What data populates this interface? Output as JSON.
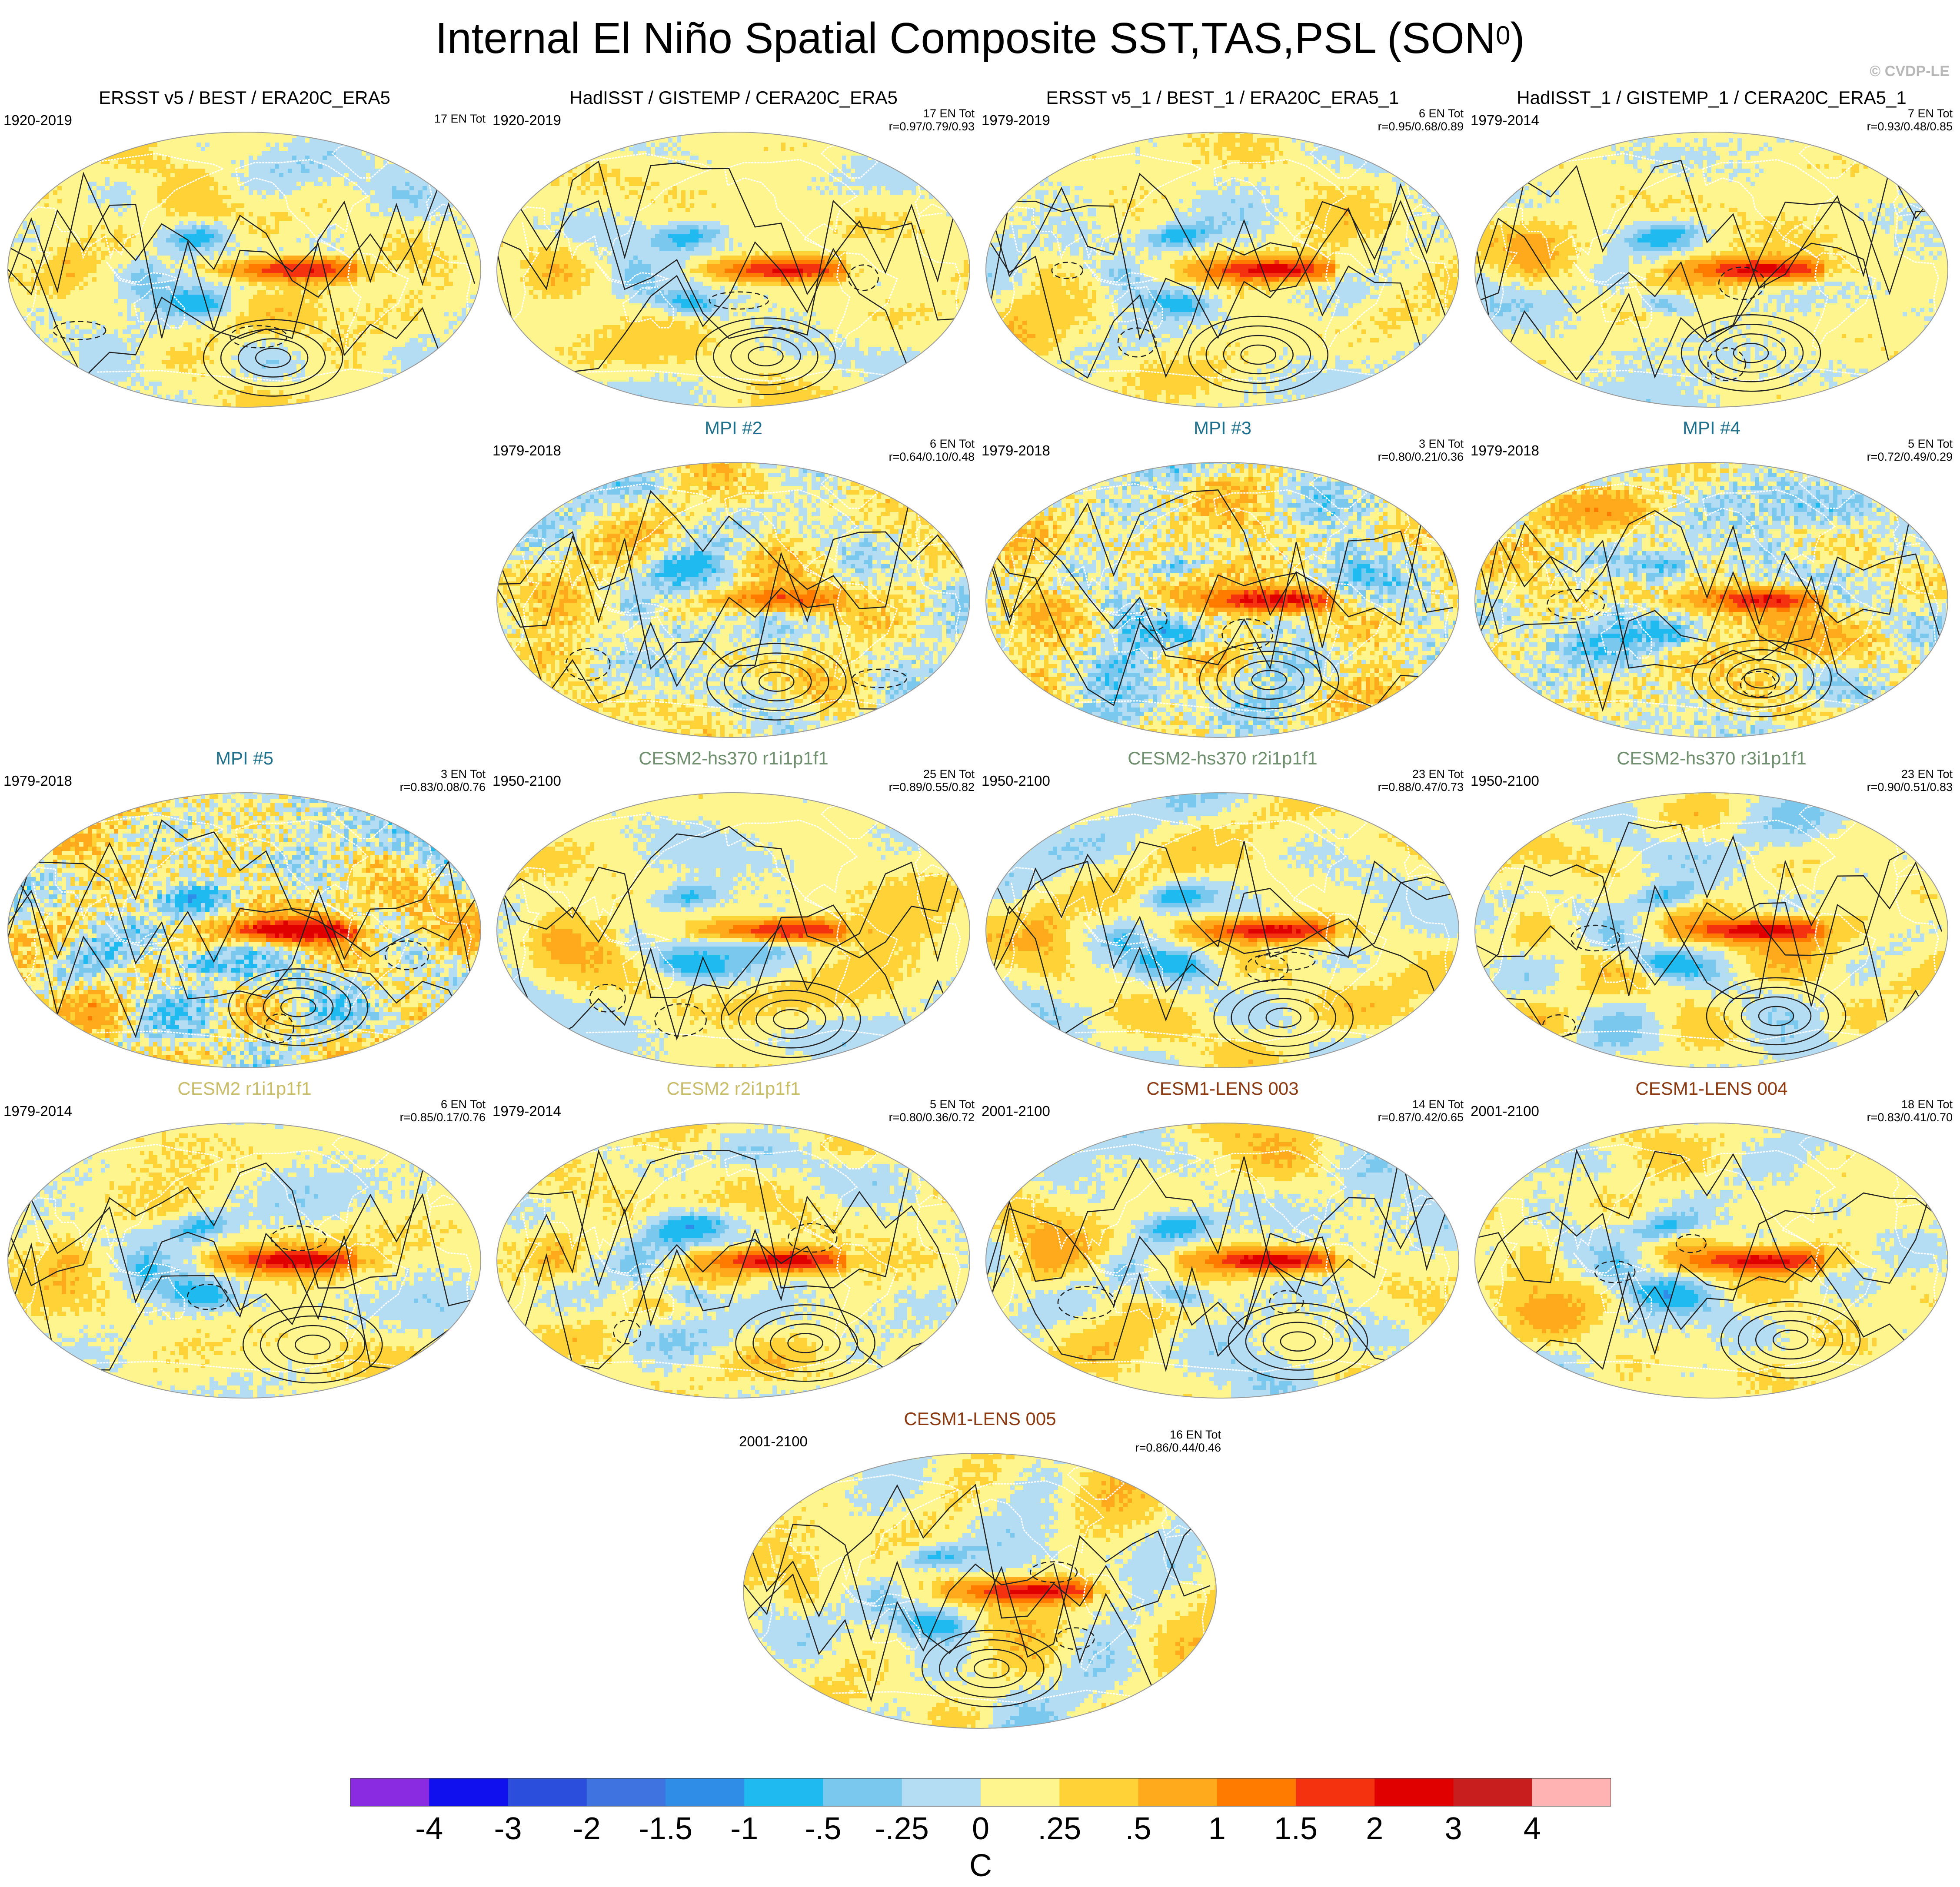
{
  "title": "Internal El Niño Spatial Composite SST,TAS,PSL (SON",
  "title_sup": "0",
  "title_close": ")",
  "credit": "© CVDP-LE",
  "chart_data": {
    "type": "map-composite",
    "variables": [
      "SST",
      "TAS",
      "PSL"
    ],
    "season": "SON0",
    "panels": [
      {
        "title": "ERSST v5 / BEST / ERA20C_ERA5",
        "title_color": "#000000",
        "years": "1920-2019",
        "count": "17 EN Tot",
        "corr": "",
        "strength": 0.9,
        "offpac": 0.15,
        "noise": 0.12
      },
      {
        "title": "HadISST / GISTEMP / CERA20C_ERA5",
        "title_color": "#000000",
        "years": "1920-2019",
        "count": "17 EN Tot",
        "corr": "r=0.97/0.79/0.93",
        "strength": 0.9,
        "offpac": 0.12,
        "noise": 0.1
      },
      {
        "title": "ERSST v5_1 / BEST_1 / ERA20C_ERA5_1",
        "title_color": "#000000",
        "years": "1979-2019",
        "count": "6 EN Tot",
        "corr": "r=0.95/0.68/0.89",
        "strength": 0.95,
        "offpac": 0.18,
        "noise": 0.15
      },
      {
        "title": "HadISST_1 / GISTEMP_1 / CERA20C_ERA5_1",
        "title_color": "#000000",
        "years": "1979-2014",
        "count": "7 EN Tot",
        "corr": "r=0.93/0.48/0.85",
        "strength": 0.95,
        "offpac": 0.15,
        "noise": 0.12
      },
      {
        "title": "MPI #2",
        "title_color": "#1f6f8b",
        "years": "1979-2018",
        "count": "6 EN Tot",
        "corr": "r=0.64/0.10/0.48",
        "strength": 0.55,
        "offpac": 0.3,
        "noise": 0.3
      },
      {
        "title": "MPI #3",
        "title_color": "#1f6f8b",
        "years": "1979-2018",
        "count": "3 EN Tot",
        "corr": "r=0.80/0.21/0.36",
        "strength": 0.95,
        "offpac": 0.45,
        "noise": 0.4
      },
      {
        "title": "MPI #4",
        "title_color": "#1f6f8b",
        "years": "1979-2018",
        "count": "5 EN Tot",
        "corr": "r=0.72/0.49/0.29",
        "strength": 0.8,
        "offpac": 0.4,
        "noise": 0.35
      },
      {
        "title": "MPI #5",
        "title_color": "#1f6f8b",
        "years": "1979-2018",
        "count": "3 EN Tot",
        "corr": "r=0.83/0.08/0.76",
        "strength": 1.1,
        "offpac": 0.6,
        "noise": 0.45
      },
      {
        "title": "CESM2-hs370 r1i1p1f1",
        "title_color": "#6f8f6f",
        "years": "1950-2100",
        "count": "25 EN Tot",
        "corr": "r=0.89/0.55/0.82",
        "strength": 1.0,
        "offpac": 0.25,
        "noise": 0.1
      },
      {
        "title": "CESM2-hs370 r2i1p1f1",
        "title_color": "#6f8f6f",
        "years": "1950-2100",
        "count": "23 EN Tot",
        "corr": "r=0.88/0.47/0.73",
        "strength": 1.0,
        "offpac": 0.25,
        "noise": 0.1
      },
      {
        "title": "CESM2-hs370 r3i1p1f1",
        "title_color": "#6f8f6f",
        "years": "1950-2100",
        "count": "23 EN Tot",
        "corr": "r=0.90/0.51/0.83",
        "strength": 1.0,
        "offpac": 0.25,
        "noise": 0.1
      },
      {
        "title": "CESM2 r1i1p1f1",
        "title_color": "#c9bd6a",
        "years": "1979-2014",
        "count": "6 EN Tot",
        "corr": "r=0.85/0.17/0.76",
        "strength": 0.95,
        "offpac": 0.2,
        "noise": 0.15
      },
      {
        "title": "CESM2 r2i1p1f1",
        "title_color": "#c9bd6a",
        "years": "1979-2014",
        "count": "5 EN Tot",
        "corr": "r=0.80/0.36/0.72",
        "strength": 1.05,
        "offpac": 0.2,
        "noise": 0.15
      },
      {
        "title": "CESM1-LENS 003",
        "title_color": "#8b3a12",
        "years": "2001-2100",
        "count": "14 EN Tot",
        "corr": "r=0.87/0.42/0.65",
        "strength": 1.05,
        "offpac": 0.3,
        "noise": 0.12
      },
      {
        "title": "CESM1-LENS 004",
        "title_color": "#8b3a12",
        "years": "2001-2100",
        "count": "18 EN Tot",
        "corr": "r=0.83/0.41/0.70",
        "strength": 0.95,
        "offpac": 0.25,
        "noise": 0.12
      },
      {
        "title": "CESM1-LENS 005",
        "title_color": "#8b3a12",
        "years": "2001-2100",
        "count": "16 EN Tot",
        "corr": "r=0.86/0.44/0.46",
        "strength": 0.95,
        "offpac": 0.3,
        "noise": 0.12
      }
    ],
    "colorbar": {
      "label": "C",
      "ticks": [
        "-4",
        "-3",
        "-2",
        "-1.5",
        "-1",
        "-.5",
        "-.25",
        "0",
        ".25",
        ".5",
        "1",
        "1.5",
        "2",
        "3",
        "4"
      ],
      "levels": [
        -4,
        -3,
        -2,
        -1.5,
        -1,
        -0.5,
        -0.25,
        0,
        0.25,
        0.5,
        1,
        1.5,
        2,
        3,
        4
      ],
      "colors": [
        "#8a2be2",
        "#1010ee",
        "#2b4fdc",
        "#3f74e0",
        "#2f8de8",
        "#1fbaf0",
        "#7ac8ee",
        "#b4dcf2",
        "#fff58e",
        "#ffd337",
        "#ffaa1c",
        "#ff7b00",
        "#f43210",
        "#e00000",
        "#c81e1e",
        "#ffb3b3"
      ]
    }
  }
}
